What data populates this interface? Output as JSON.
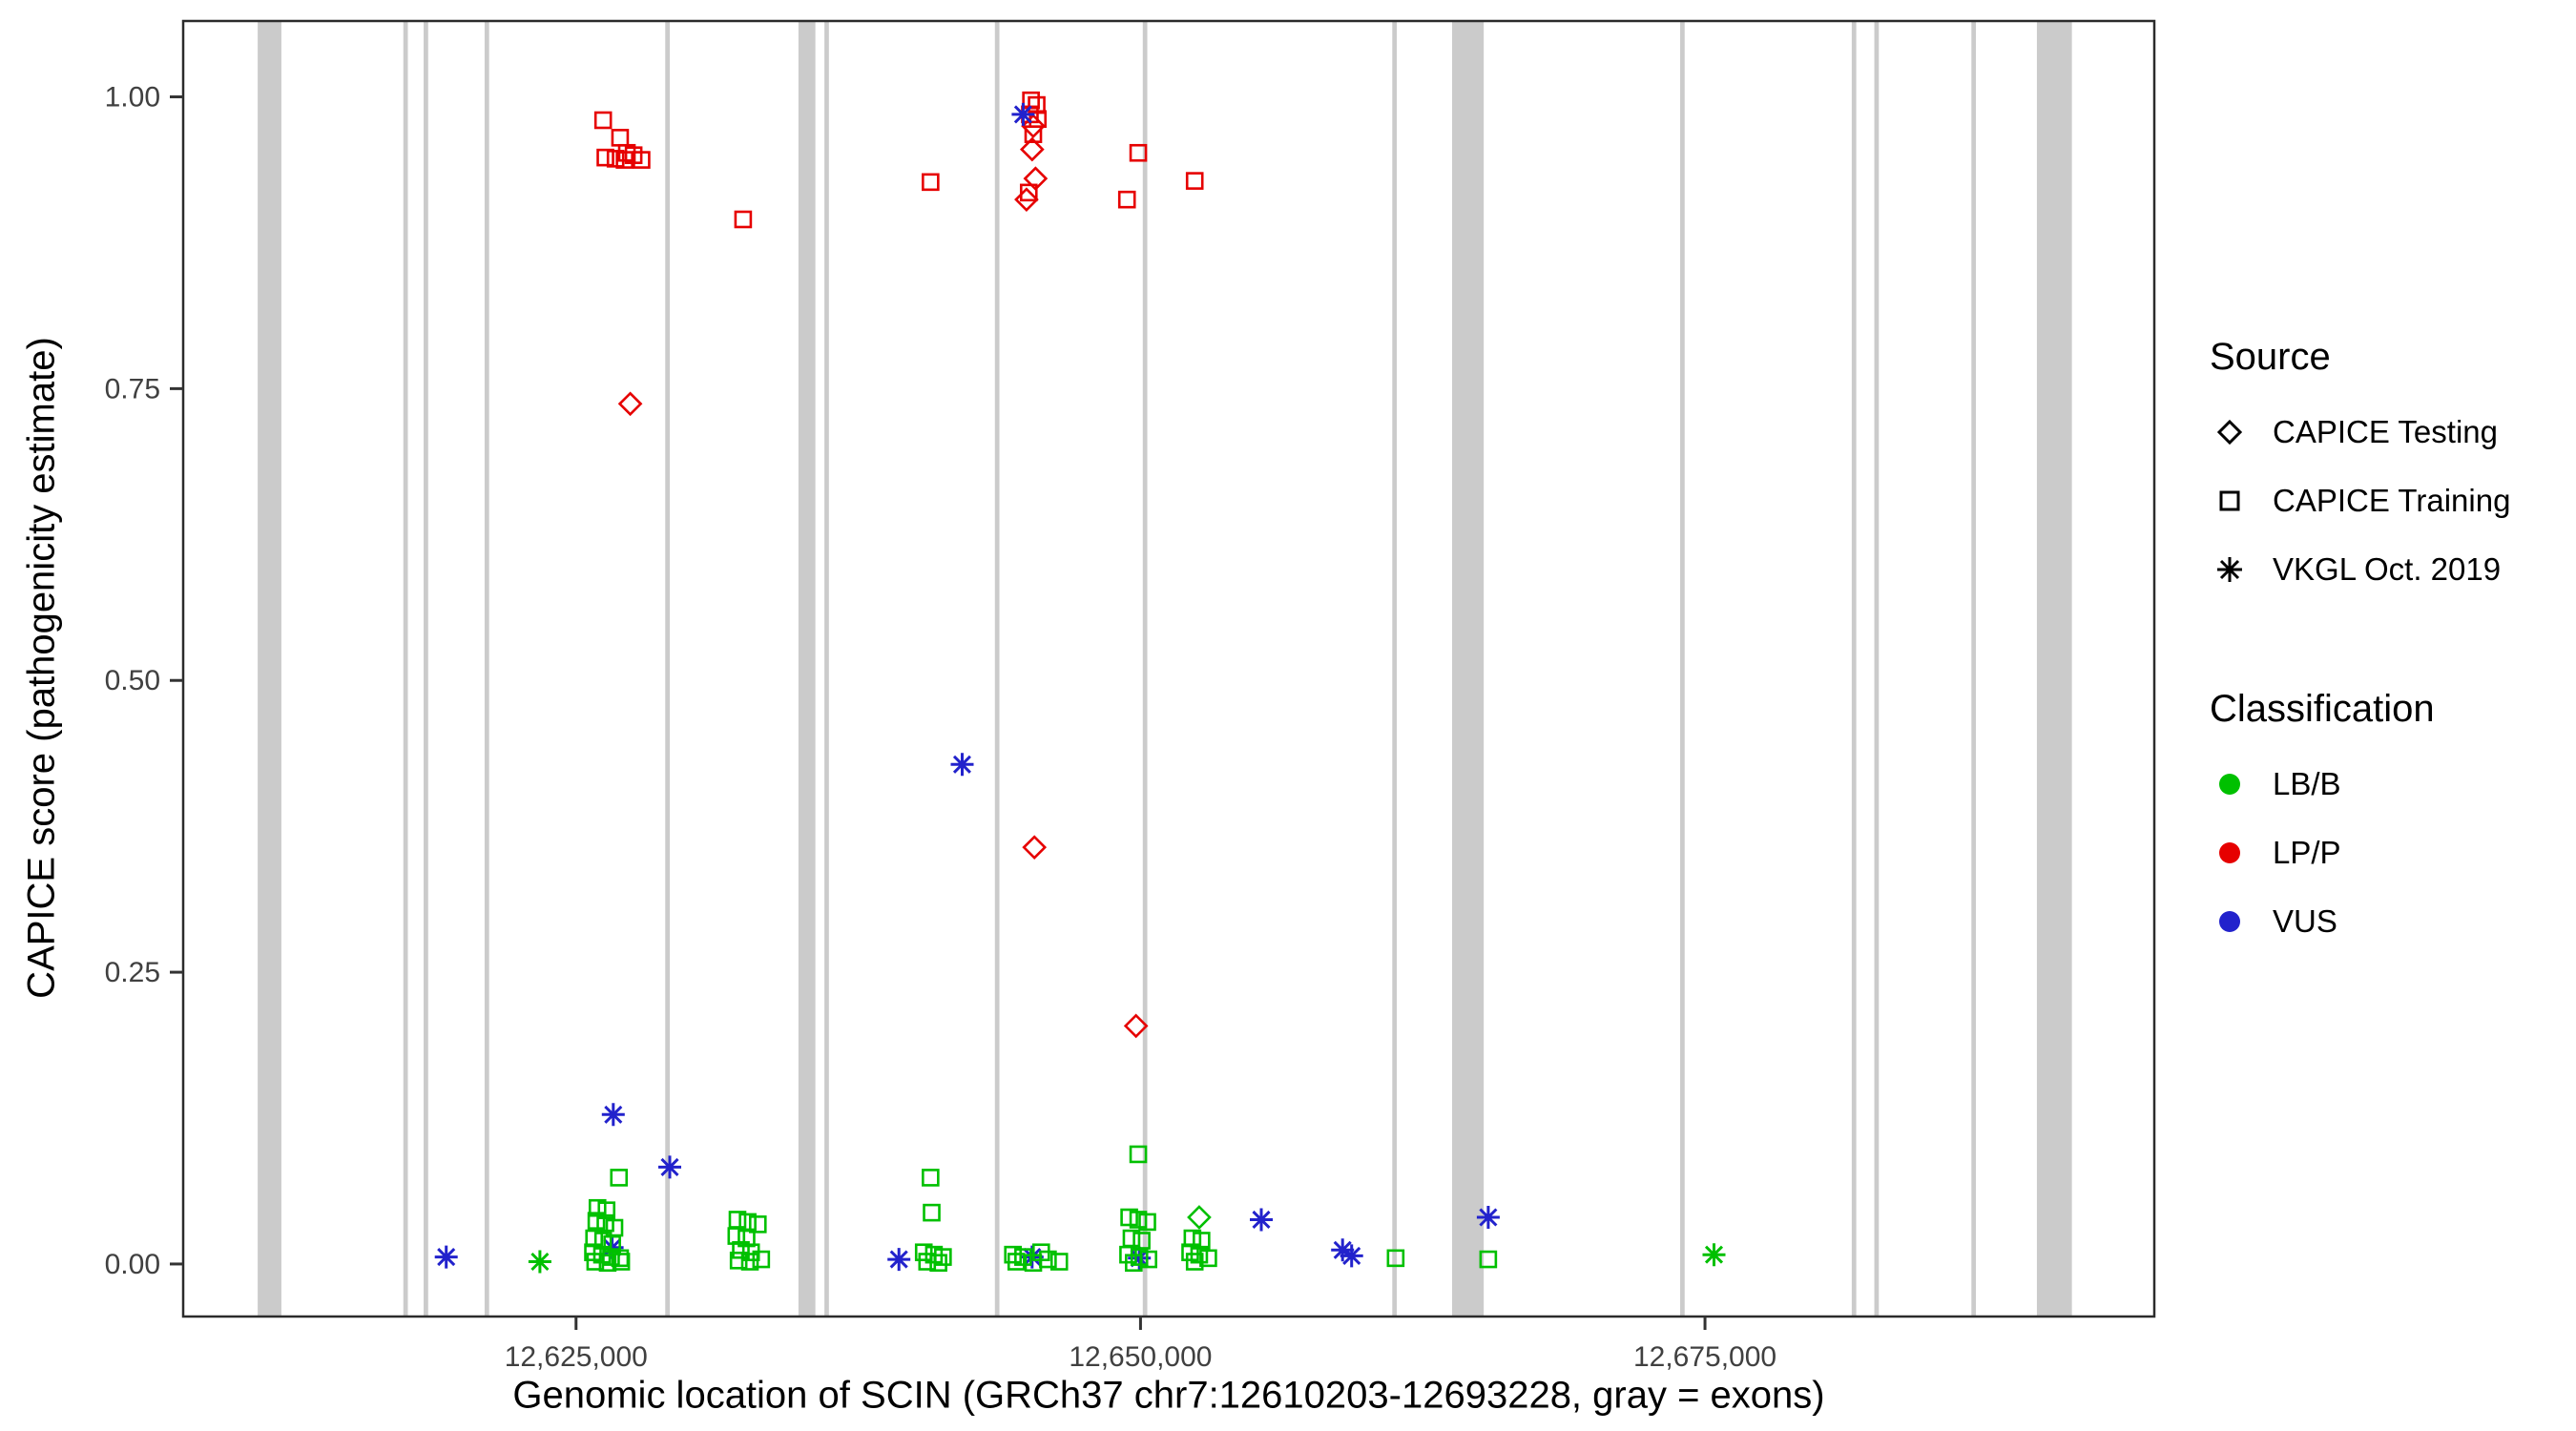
{
  "legend": {
    "source": {
      "title": "Source",
      "items": [
        {
          "label": "CAPICE Testing",
          "shape": "diamond"
        },
        {
          "label": "CAPICE Training",
          "shape": "square"
        },
        {
          "label": "VKGL Oct. 2019",
          "shape": "asterisk"
        }
      ]
    },
    "classification": {
      "title": "Classification",
      "items": [
        {
          "label": "LB/B",
          "color_key": "LB/B"
        },
        {
          "label": "LP/P",
          "color_key": "LP/P"
        },
        {
          "label": "VUS",
          "color_key": "VUS"
        }
      ]
    }
  },
  "chart_data": {
    "type": "scatter",
    "title": "",
    "xlabel": "Genomic location of SCIN (GRCh37 chr7:12610203-12693228, gray = exons)",
    "ylabel": "CAPICE score (pathogenicity estimate)",
    "xlim": [
      12607600,
      12694900
    ],
    "ylim": [
      -0.045,
      1.065
    ],
    "grid": false,
    "legend_position": "right",
    "xticks": [
      {
        "value": 12625000,
        "label": "12,625,000"
      },
      {
        "value": 12650000,
        "label": "12,650,000"
      },
      {
        "value": 12675000,
        "label": "12,675,000"
      }
    ],
    "yticks": [
      {
        "value": 0.0,
        "label": "0.00"
      },
      {
        "value": 0.25,
        "label": "0.25"
      },
      {
        "value": 0.5,
        "label": "0.50"
      },
      {
        "value": 0.75,
        "label": "0.75"
      },
      {
        "value": 1.0,
        "label": "1.00"
      }
    ],
    "colors": {
      "LB/B": "#00C000",
      "LP/P": "#E60000",
      "VUS": "#2222CC"
    },
    "shapes": {
      "CAPICE Testing": "diamond",
      "CAPICE Training": "square",
      "VKGL Oct. 2019": "asterisk"
    },
    "exon_color": "#cbcbcb",
    "exons": [
      [
        12610900,
        12611950
      ],
      [
        12617350,
        12617550
      ],
      [
        12618250,
        12618450
      ],
      [
        12620950,
        12621150
      ],
      [
        12628950,
        12629150
      ],
      [
        12634850,
        12635600
      ],
      [
        12636000,
        12636200
      ],
      [
        12643550,
        12643750
      ],
      [
        12650100,
        12650300
      ],
      [
        12661150,
        12661350
      ],
      [
        12663800,
        12665200
      ],
      [
        12673900,
        12674100
      ],
      [
        12681500,
        12681700
      ],
      [
        12682500,
        12682700
      ],
      [
        12686800,
        12687000
      ],
      [
        12689700,
        12691250
      ]
    ],
    "points_format": [
      "position",
      "score",
      "shape",
      "classification"
    ],
    "points": [
      [
        12626200,
        0.98,
        "square",
        "LP/P"
      ],
      [
        12626950,
        0.965,
        "square",
        "LP/P"
      ],
      [
        12627250,
        0.952,
        "square",
        "LP/P"
      ],
      [
        12626300,
        0.948,
        "square",
        "LP/P"
      ],
      [
        12626750,
        0.947,
        "square",
        "LP/P"
      ],
      [
        12627150,
        0.946,
        "square",
        "LP/P"
      ],
      [
        12627550,
        0.95,
        "square",
        "LP/P"
      ],
      [
        12627900,
        0.946,
        "square",
        "LP/P"
      ],
      [
        12632400,
        0.895,
        "square",
        "LP/P"
      ],
      [
        12640700,
        0.927,
        "square",
        "LP/P"
      ],
      [
        12645150,
        0.997,
        "square",
        "LP/P"
      ],
      [
        12645400,
        0.993,
        "square",
        "LP/P"
      ],
      [
        12645100,
        0.985,
        "square",
        "LP/P"
      ],
      [
        12645450,
        0.981,
        "square",
        "LP/P"
      ],
      [
        12645250,
        0.968,
        "square",
        "LP/P"
      ],
      [
        12645050,
        0.918,
        "square",
        "LP/P"
      ],
      [
        12649400,
        0.912,
        "square",
        "LP/P"
      ],
      [
        12649900,
        0.952,
        "square",
        "LP/P"
      ],
      [
        12652400,
        0.928,
        "square",
        "LP/P"
      ],
      [
        12627400,
        0.737,
        "diamond",
        "LP/P"
      ],
      [
        12645250,
        0.975,
        "diamond",
        "LP/P"
      ],
      [
        12645200,
        0.955,
        "diamond",
        "LP/P"
      ],
      [
        12645350,
        0.93,
        "diamond",
        "LP/P"
      ],
      [
        12644950,
        0.912,
        "diamond",
        "LP/P"
      ],
      [
        12645300,
        0.357,
        "diamond",
        "LP/P"
      ],
      [
        12649800,
        0.204,
        "diamond",
        "LP/P"
      ],
      [
        12644800,
        0.985,
        "asterisk",
        "VUS"
      ],
      [
        12642100,
        0.428,
        "asterisk",
        "VUS"
      ],
      [
        12626650,
        0.128,
        "asterisk",
        "VUS"
      ],
      [
        12629150,
        0.083,
        "asterisk",
        "VUS"
      ],
      [
        12655350,
        0.038,
        "asterisk",
        "VUS"
      ],
      [
        12665400,
        0.04,
        "asterisk",
        "VUS"
      ],
      [
        12619250,
        0.006,
        "asterisk",
        "VUS"
      ],
      [
        12626600,
        0.014,
        "asterisk",
        "VUS"
      ],
      [
        12639300,
        0.004,
        "asterisk",
        "VUS"
      ],
      [
        12645200,
        0.006,
        "asterisk",
        "VUS"
      ],
      [
        12649950,
        0.005,
        "asterisk",
        "VUS"
      ],
      [
        12658950,
        0.012,
        "asterisk",
        "VUS"
      ],
      [
        12659350,
        0.007,
        "asterisk",
        "VUS"
      ],
      [
        12623400,
        0.002,
        "asterisk",
        "LB/B"
      ],
      [
        12675400,
        0.008,
        "asterisk",
        "LB/B"
      ],
      [
        12626900,
        0.074,
        "square",
        "LB/B"
      ],
      [
        12625950,
        0.048,
        "square",
        "LB/B"
      ],
      [
        12626350,
        0.046,
        "square",
        "LB/B"
      ],
      [
        12625900,
        0.037,
        "square",
        "LB/B"
      ],
      [
        12626300,
        0.035,
        "square",
        "LB/B"
      ],
      [
        12626700,
        0.031,
        "square",
        "LB/B"
      ],
      [
        12625800,
        0.022,
        "square",
        "LB/B"
      ],
      [
        12626200,
        0.02,
        "square",
        "LB/B"
      ],
      [
        12626600,
        0.017,
        "square",
        "LB/B"
      ],
      [
        12625750,
        0.01,
        "square",
        "LB/B"
      ],
      [
        12626150,
        0.008,
        "square",
        "LB/B"
      ],
      [
        12626550,
        0.006,
        "square",
        "LB/B"
      ],
      [
        12626950,
        0.005,
        "square",
        "LB/B"
      ],
      [
        12625850,
        0.002,
        "square",
        "LB/B"
      ],
      [
        12626400,
        0.001,
        "square",
        "LB/B"
      ],
      [
        12627000,
        0.002,
        "square",
        "LB/B"
      ],
      [
        12632150,
        0.038,
        "square",
        "LB/B"
      ],
      [
        12632600,
        0.036,
        "square",
        "LB/B"
      ],
      [
        12633050,
        0.034,
        "square",
        "LB/B"
      ],
      [
        12632100,
        0.024,
        "square",
        "LB/B"
      ],
      [
        12632550,
        0.022,
        "square",
        "LB/B"
      ],
      [
        12632300,
        0.012,
        "square",
        "LB/B"
      ],
      [
        12632750,
        0.01,
        "square",
        "LB/B"
      ],
      [
        12632200,
        0.003,
        "square",
        "LB/B"
      ],
      [
        12632700,
        0.002,
        "square",
        "LB/B"
      ],
      [
        12633200,
        0.004,
        "square",
        "LB/B"
      ],
      [
        12640700,
        0.074,
        "square",
        "LB/B"
      ],
      [
        12640750,
        0.044,
        "square",
        "LB/B"
      ],
      [
        12640400,
        0.01,
        "square",
        "LB/B"
      ],
      [
        12640850,
        0.008,
        "square",
        "LB/B"
      ],
      [
        12641250,
        0.006,
        "square",
        "LB/B"
      ],
      [
        12640550,
        0.002,
        "square",
        "LB/B"
      ],
      [
        12641050,
        0.001,
        "square",
        "LB/B"
      ],
      [
        12644350,
        0.008,
        "square",
        "LB/B"
      ],
      [
        12644800,
        0.006,
        "square",
        "LB/B"
      ],
      [
        12645600,
        0.01,
        "square",
        "LB/B"
      ],
      [
        12645900,
        0.004,
        "square",
        "LB/B"
      ],
      [
        12644500,
        0.002,
        "square",
        "LB/B"
      ],
      [
        12645250,
        0.001,
        "square",
        "LB/B"
      ],
      [
        12646400,
        0.002,
        "square",
        "LB/B"
      ],
      [
        12649900,
        0.094,
        "square",
        "LB/B"
      ],
      [
        12649500,
        0.04,
        "square",
        "LB/B"
      ],
      [
        12649900,
        0.038,
        "square",
        "LB/B"
      ],
      [
        12650300,
        0.036,
        "square",
        "LB/B"
      ],
      [
        12649600,
        0.022,
        "square",
        "LB/B"
      ],
      [
        12650050,
        0.02,
        "square",
        "LB/B"
      ],
      [
        12649450,
        0.008,
        "square",
        "LB/B"
      ],
      [
        12649950,
        0.006,
        "square",
        "LB/B"
      ],
      [
        12650350,
        0.004,
        "square",
        "LB/B"
      ],
      [
        12649700,
        0.001,
        "square",
        "LB/B"
      ],
      [
        12652300,
        0.022,
        "square",
        "LB/B"
      ],
      [
        12652700,
        0.02,
        "square",
        "LB/B"
      ],
      [
        12652200,
        0.01,
        "square",
        "LB/B"
      ],
      [
        12652600,
        0.008,
        "square",
        "LB/B"
      ],
      [
        12653000,
        0.005,
        "square",
        "LB/B"
      ],
      [
        12652400,
        0.002,
        "square",
        "LB/B"
      ],
      [
        12652600,
        0.04,
        "diamond",
        "LB/B"
      ],
      [
        12661300,
        0.005,
        "square",
        "LB/B"
      ],
      [
        12665400,
        0.004,
        "square",
        "LB/B"
      ]
    ]
  }
}
